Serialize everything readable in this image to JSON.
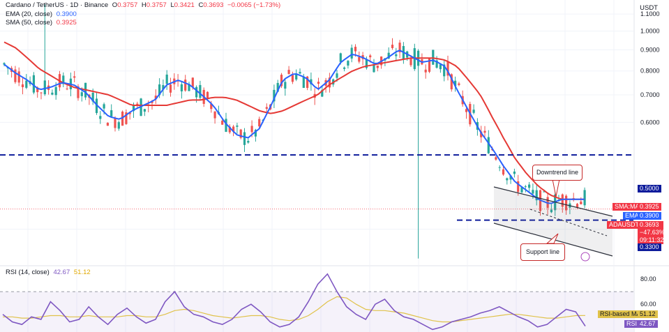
{
  "header": {
    "symbol_title": "Cardano / TetherUS · 1D · Binance",
    "ohlc": [
      {
        "k": "O",
        "v": "0.3757"
      },
      {
        "k": "H",
        "v": "0.3757"
      },
      {
        "k": "L",
        "v": "0.3421"
      },
      {
        "k": "C",
        "v": "0.3693"
      },
      {
        "k": "",
        "v": "−0.0065 (−1.73%)"
      }
    ],
    "ema_label": "EMA (20, close)",
    "ema_value": "0.3900",
    "sma_label": "SMA (50, close)",
    "sma_value": "0.3925",
    "currency": "USDT"
  },
  "rsi_header": {
    "label": "RSI (14, close)",
    "rsi_value": "42.67",
    "ma_value": "51.12"
  },
  "annotations": {
    "downtrend": "Downtrend line",
    "support": "Support line"
  },
  "badges": {
    "sma_ma_tag": "SMA:MA",
    "sma_value": "0.3925",
    "ema_tag": "EMA",
    "ema_value": "0.3900",
    "pair_tag": "ADAUSDT",
    "pair_price": "0.3693",
    "pair_change": "−47.63%",
    "pair_timer": "09:11:32",
    "level_high": "0.5000",
    "level_low": "0.3300",
    "rsi_ma_tag": "RSI-based MA",
    "rsi_ma_value": "51.12",
    "rsi_tag": "RSI",
    "rsi_value": "42.67"
  },
  "colors": {
    "up": "#26a69a",
    "down": "#ef5350",
    "ema": "#2962ff",
    "sma": "#e53935",
    "level_line": "#0d1b9b",
    "rsi": "#7e57c2",
    "rsi_ma": "#e0c24a"
  },
  "chart_data": [
    {
      "type": "candlestick",
      "title": "Cardano / TetherUS · 1D · Binance",
      "ylabel": "USDT",
      "yticks": [
        0.33,
        0.5,
        0.6,
        0.7,
        0.8,
        0.9,
        1.0,
        1.1
      ],
      "ylim": [
        0.27,
        1.19
      ],
      "y_scale": "log",
      "grid": true,
      "horizontal_levels": [
        0.5,
        0.33
      ],
      "series": [
        {
          "name": "EMA (20, close)",
          "last": 0.39,
          "path": [
            0.83,
            0.79,
            0.76,
            0.72,
            0.73,
            0.75,
            0.74,
            0.71,
            0.66,
            0.62,
            0.61,
            0.64,
            0.66,
            0.68,
            0.74,
            0.76,
            0.74,
            0.7,
            0.66,
            0.6,
            0.56,
            0.55,
            0.58,
            0.66,
            0.76,
            0.79,
            0.77,
            0.72,
            0.76,
            0.84,
            0.88,
            0.86,
            0.83,
            0.86,
            0.9,
            0.87,
            0.84,
            0.85,
            0.82,
            0.72,
            0.64,
            0.57,
            0.52,
            0.47,
            0.43,
            0.41,
            0.39,
            0.38,
            0.39,
            0.39,
            0.39
          ]
        },
        {
          "name": "SMA (50, close)",
          "last": 0.3925,
          "path": [
            0.94,
            0.91,
            0.86,
            0.81,
            0.78,
            0.75,
            0.73,
            0.72,
            0.71,
            0.7,
            0.68,
            0.66,
            0.66,
            0.66,
            0.66,
            0.67,
            0.68,
            0.68,
            0.69,
            0.69,
            0.68,
            0.66,
            0.64,
            0.63,
            0.64,
            0.66,
            0.68,
            0.7,
            0.74,
            0.77,
            0.8,
            0.82,
            0.83,
            0.84,
            0.85,
            0.86,
            0.86,
            0.86,
            0.85,
            0.82,
            0.76,
            0.7,
            0.62,
            0.55,
            0.49,
            0.45,
            0.42,
            0.4,
            0.39,
            0.39,
            0.39
          ]
        }
      ],
      "annotations": [
        "Downtrend line",
        "Support line"
      ]
    },
    {
      "type": "line",
      "title": "RSI (14, close)",
      "yticks": [
        60.0,
        80.0
      ],
      "ylim": [
        38,
        90
      ],
      "series": [
        {
          "name": "RSI",
          "last": 42.67,
          "values": [
            52,
            46,
            44,
            50,
            48,
            62,
            55,
            46,
            48,
            58,
            50,
            44,
            52,
            57,
            50,
            45,
            48,
            62,
            70,
            58,
            52,
            50,
            46,
            44,
            48,
            56,
            60,
            54,
            46,
            42,
            44,
            50,
            62,
            76,
            84,
            70,
            58,
            52,
            48,
            60,
            64,
            55,
            50,
            48,
            44,
            40,
            42,
            46,
            48,
            50,
            53,
            55,
            58,
            54,
            50,
            47,
            42,
            44,
            50,
            56,
            54,
            42.67
          ]
        },
        {
          "name": "RSI-based MA",
          "last": 51.12,
          "values": [
            50,
            50,
            49,
            49,
            50,
            51,
            51,
            50,
            50,
            51,
            50,
            50,
            50,
            51,
            51,
            50,
            50,
            52,
            55,
            56,
            55,
            53,
            51,
            50,
            49,
            50,
            51,
            51,
            50,
            48,
            47,
            48,
            51,
            56,
            62,
            66,
            65,
            60,
            56,
            55,
            55,
            54,
            53,
            51,
            49,
            47,
            46,
            46,
            47,
            48,
            49,
            50,
            51,
            52,
            52,
            51,
            50,
            49,
            49,
            50,
            51,
            51.12
          ]
        }
      ]
    }
  ]
}
